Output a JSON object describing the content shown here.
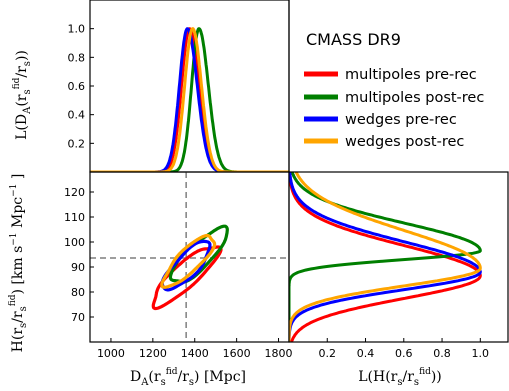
{
  "chart_data": {
    "type": "line",
    "title": "CMASS DR9",
    "legend": {
      "placement": "top-right panel",
      "entries": [
        {
          "label": "multipoles pre-rec",
          "color": "#ff0000"
        },
        {
          "label": "multipoles post-rec",
          "color": "#007f00"
        },
        {
          "label": "wedges pre-rec",
          "color": "#0000ff"
        },
        {
          "label": "wedges post-rec",
          "color": "#ffa500"
        }
      ]
    },
    "fiducial": {
      "DA": 1359,
      "H": 93.6
    },
    "panels": {
      "top_left": {
        "ylabel": "L(D_A(r_s^fid / r_s))",
        "xlim": [
          900,
          1850
        ],
        "ylim": [
          0,
          1.2
        ],
        "yticks": [
          0.2,
          0.4,
          0.6,
          0.8,
          1.0
        ],
        "ytick_labels": [
          "0.2",
          "0.4",
          "0.6",
          "0.8",
          "1.0"
        ],
        "series": [
          {
            "name": "multipoles pre-rec",
            "color": "#ff0000",
            "peak_DA": 1375,
            "sigma_low": 38,
            "sigma_high": 45
          },
          {
            "name": "multipoles post-rec",
            "color": "#007f00",
            "peak_DA": 1420,
            "sigma_low": 35,
            "sigma_high": 45
          },
          {
            "name": "wedges pre-rec",
            "color": "#0000ff",
            "peak_DA": 1365,
            "sigma_low": 38,
            "sigma_high": 47
          },
          {
            "name": "wedges post-rec",
            "color": "#ffa500",
            "peak_DA": 1390,
            "sigma_low": 38,
            "sigma_high": 42
          }
        ]
      },
      "bottom_left": {
        "xlabel": "D_A(r_s^fid / r_s) [Mpc]",
        "ylabel": "H(r_s/r_s^fid) [km s^-1 Mpc^-1]",
        "xlim": [
          900,
          1850
        ],
        "ylim": [
          60,
          128
        ],
        "xticks": [
          1000,
          1200,
          1400,
          1600,
          1800
        ],
        "xtick_labels": [
          "1000",
          "1200",
          "1400",
          "1600",
          "1800"
        ],
        "yticks": [
          70,
          80,
          90,
          100,
          110,
          120
        ],
        "ytick_labels": [
          "70",
          "80",
          "90",
          "100",
          "110",
          "120"
        ],
        "contours": [
          {
            "name": "multipoles pre-rec",
            "color": "#ff0000",
            "center_DA": 1355,
            "center_H": 86.5,
            "a": 78,
            "b": 12,
            "angle_deg": 42
          },
          {
            "name": "multipoles post-rec",
            "color": "#007f00",
            "center_DA": 1420,
            "center_H": 94.5,
            "a": 68,
            "b": 12,
            "angle_deg": 44
          },
          {
            "name": "wedges pre-rec",
            "color": "#0000ff",
            "center_DA": 1362,
            "center_H": 90.5,
            "a": 58,
            "b": 11,
            "angle_deg": 46
          },
          {
            "name": "wedges post-rec",
            "color": "#ffa500",
            "center_DA": 1372,
            "center_H": 92.5,
            "a": 62,
            "b": 11,
            "angle_deg": 45
          }
        ]
      },
      "bottom_right": {
        "xlabel": "L(H(r_s/r_s^fid))",
        "xlim": [
          0,
          1.15
        ],
        "ylim": [
          60,
          128
        ],
        "xticks": [
          0.2,
          0.4,
          0.6,
          0.8,
          1.0
        ],
        "xtick_labels": [
          "0.2",
          "0.4",
          "0.6",
          "0.8",
          "1.0"
        ],
        "series": [
          {
            "name": "multipoles pre-rec",
            "color": "#ff0000",
            "peak_H": 86.5,
            "sigma_low": 9,
            "sigma_high": 12
          },
          {
            "name": "multipoles post-rec",
            "color": "#007f00",
            "peak_H": 96.5,
            "sigma_low": 3.5,
            "sigma_high": 11
          },
          {
            "name": "wedges pre-rec",
            "color": "#0000ff",
            "peak_H": 88,
            "sigma_low": 7,
            "sigma_high": 12
          },
          {
            "name": "wedges post-rec",
            "color": "#ffa500",
            "peak_H": 89.5,
            "sigma_low": 7,
            "sigma_high": 15
          }
        ]
      }
    }
  }
}
